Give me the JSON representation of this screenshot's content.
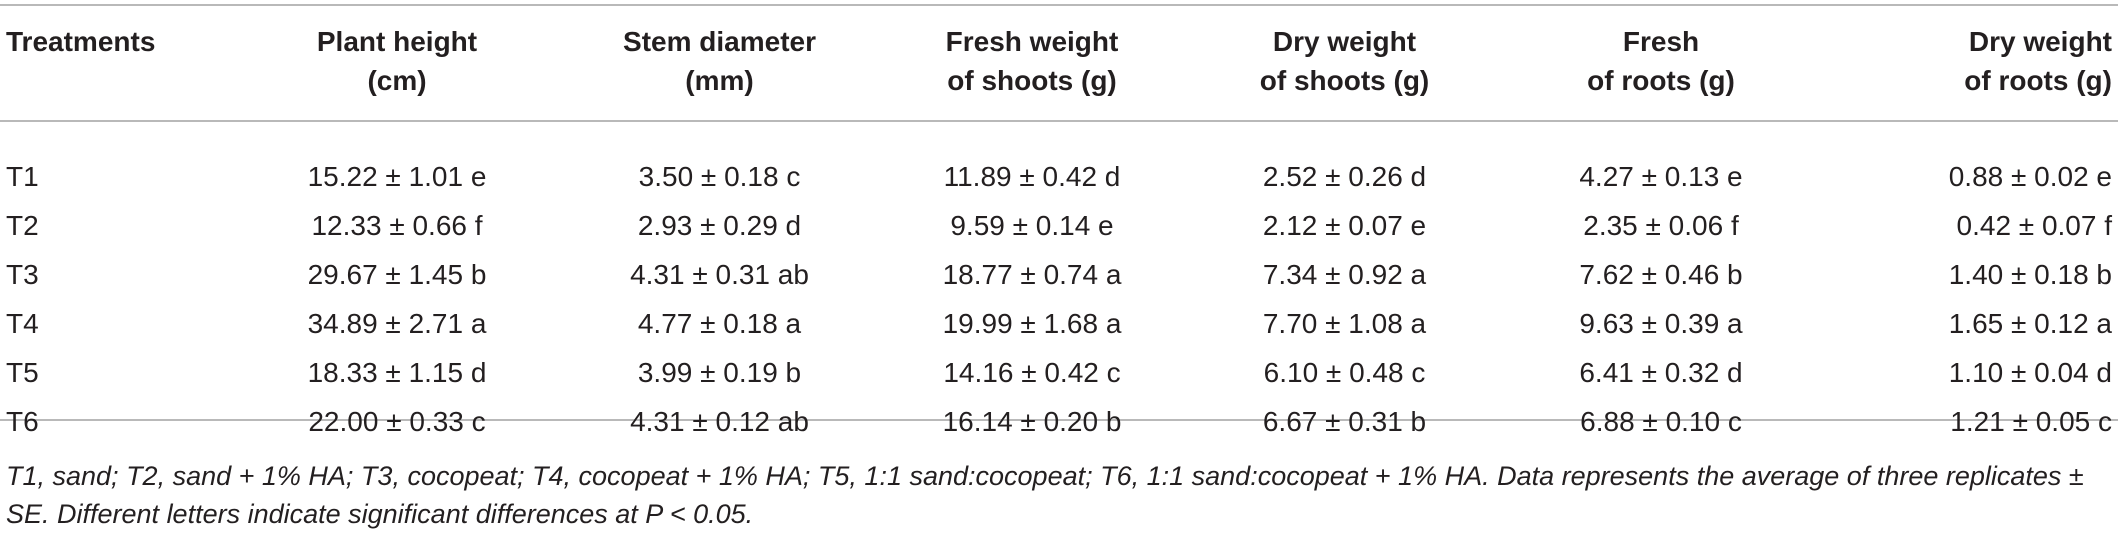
{
  "table": {
    "headers": [
      "Treatments",
      "Plant height\n(cm)",
      "Stem diameter\n(mm)",
      "Fresh weight\nof shoots (g)",
      "Dry weight\nof shoots (g)",
      "Fresh\nof roots (g)",
      "Dry weight\nof roots (g)"
    ],
    "rows": [
      [
        "T1",
        "15.22 ± 1.01 e",
        "3.50 ± 0.18 c",
        "11.89 ± 0.42 d",
        "2.52 ± 0.26 d",
        "4.27 ± 0.13 e",
        "0.88 ± 0.02 e"
      ],
      [
        "T2",
        "12.33 ± 0.66 f",
        "2.93 ± 0.29 d",
        "9.59 ± 0.14 e",
        "2.12 ± 0.07 e",
        "2.35 ± 0.06 f",
        "0.42 ± 0.07 f"
      ],
      [
        "T3",
        "29.67 ± 1.45 b",
        "4.31 ± 0.31 ab",
        "18.77 ± 0.74 a",
        "7.34 ± 0.92 a",
        "7.62 ± 0.46 b",
        "1.40 ± 0.18 b"
      ],
      [
        "T4",
        "34.89 ± 2.71 a",
        "4.77 ± 0.18 a",
        "19.99 ± 1.68 a",
        "7.70 ± 1.08 a",
        "9.63 ± 0.39 a",
        "1.65 ± 0.12 a"
      ],
      [
        "T5",
        "18.33 ± 1.15 d",
        "3.99 ± 0.19 b",
        "14.16 ± 0.42 c",
        "6.10 ± 0.48 c",
        "6.41 ± 0.32 d",
        "1.10 ± 0.04 d"
      ],
      [
        "T6",
        "22.00 ± 0.33 c",
        "4.31 ± 0.12 ab",
        "16.14 ± 0.20 b",
        "6.67 ± 0.31 b",
        "6.88 ± 0.10 c",
        "1.21 ± 0.05 c"
      ]
    ]
  },
  "footnote": "T1, sand; T2, sand + 1% HA; T3, cocopeat; T4, cocopeat + 1% HA; T5, 1:1 sand:cocopeat; T6, 1:1 sand:cocopeat + 1% HA. Data represents the average of three replicates ± SE. Different letters indicate significant differences at P < 0.05."
}
